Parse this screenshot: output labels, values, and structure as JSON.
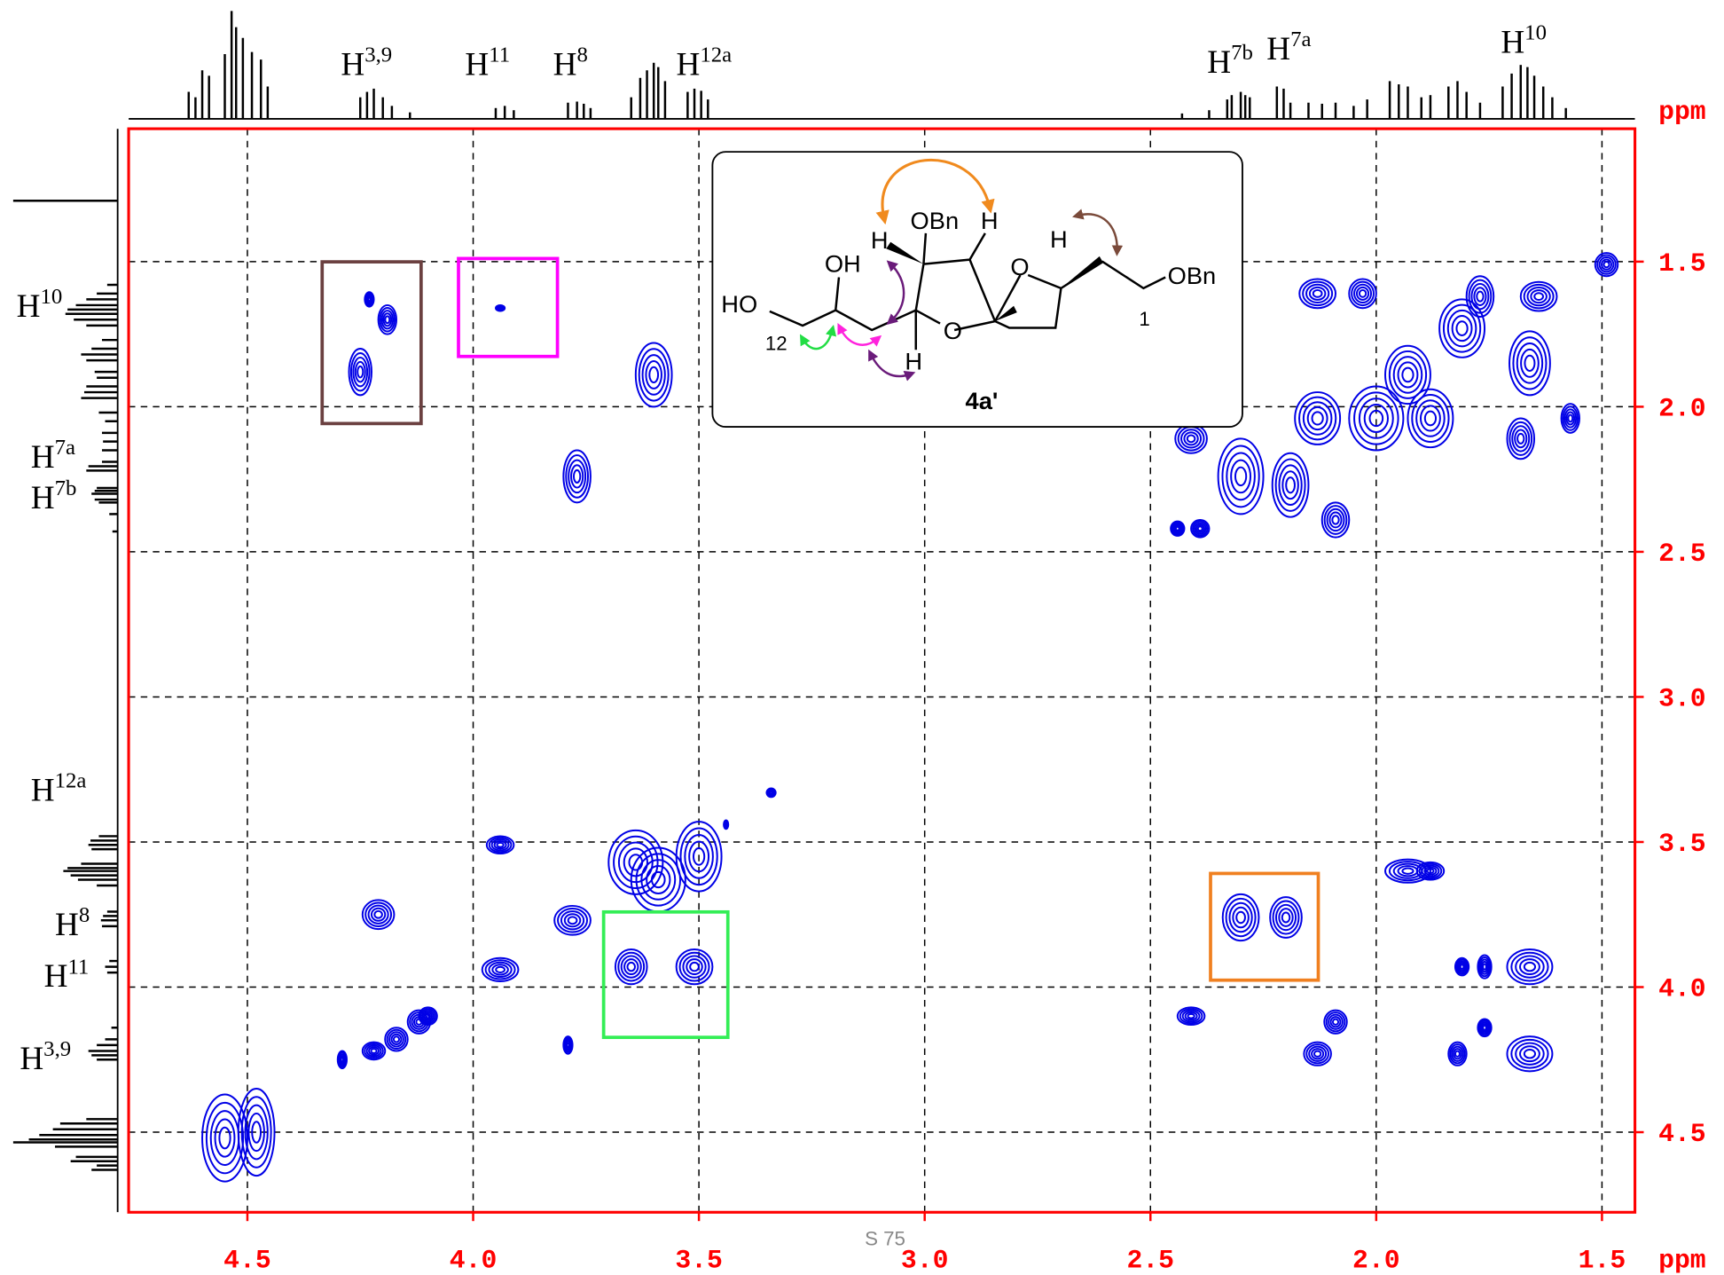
{
  "chart_data": {
    "type": "contour",
    "x_label": "ppm",
    "y_label": "ppm",
    "xlim": [
      4.763,
      1.427
    ],
    "ylim": [
      1.042,
      4.776
    ],
    "xticks": [
      4.5,
      {
        "value": 4,
        "label": "4.0"
      },
      3.5,
      {
        "value": 3,
        "label": "3.0"
      },
      2.5,
      {
        "value": 2,
        "label": "2.0"
      },
      1.5
    ],
    "yticks": [
      1.5,
      {
        "value": 2,
        "label": "2.0"
      },
      2.5,
      {
        "value": 3,
        "label": "3.0"
      },
      3.5,
      {
        "value": 4,
        "label": "4.0"
      },
      4.5
    ],
    "grid": true,
    "color": "#0000e6",
    "peaks": {
      "x": [
        4.23,
        4.19,
        4.25,
        3.94,
        3.6,
        3.77,
        2.41,
        2.3,
        2.19,
        2.09,
        2.44,
        2.39,
        2.13,
        2.03,
        1.81,
        1.66,
        1.93,
        2.0,
        2.13,
        1.88,
        1.68,
        1.57,
        1.64,
        1.49,
        1.77,
        3.64,
        3.5,
        3.59,
        3.94,
        4.21,
        3.78,
        3.65,
        3.51,
        3.94,
        3.79,
        3.34,
        3.44,
        4.29,
        4.22,
        4.17,
        4.12,
        4.1,
        4.55,
        4.48,
        2.3,
        2.2,
        1.93,
        1.88,
        1.66,
        1.76,
        1.81,
        2.41,
        2.13,
        2.09,
        1.82,
        1.66,
        1.76
      ],
      "y": [
        1.63,
        1.7,
        1.88,
        1.66,
        1.89,
        2.24,
        2.11,
        2.24,
        2.27,
        2.39,
        2.42,
        2.42,
        1.61,
        1.61,
        1.73,
        1.85,
        1.89,
        2.04,
        2.04,
        2.04,
        2.11,
        2.04,
        1.62,
        1.51,
        1.62,
        3.57,
        3.55,
        3.63,
        3.51,
        3.75,
        3.77,
        3.93,
        3.93,
        3.94,
        4.2,
        3.33,
        3.44,
        4.25,
        4.22,
        4.18,
        4.12,
        4.1,
        4.52,
        4.5,
        3.76,
        3.76,
        3.6,
        3.6,
        3.93,
        3.93,
        3.93,
        4.1,
        4.23,
        4.12,
        4.23,
        4.23,
        4.14
      ],
      "width": [
        0.02,
        0.04,
        0.05,
        0.02,
        0.08,
        0.06,
        0.07,
        0.1,
        0.08,
        0.06,
        0.03,
        0.04,
        0.08,
        0.06,
        0.1,
        0.09,
        0.1,
        0.12,
        0.1,
        0.1,
        0.06,
        0.04,
        0.08,
        0.05,
        0.06,
        0.12,
        0.1,
        0.12,
        0.06,
        0.07,
        0.08,
        0.07,
        0.08,
        0.08,
        0.02,
        0.02,
        0.01,
        0.02,
        0.05,
        0.05,
        0.05,
        0.04,
        0.1,
        0.08,
        0.08,
        0.07,
        0.1,
        0.06,
        0.1,
        0.03,
        0.03,
        0.06,
        0.06,
        0.05,
        0.04,
        0.1,
        0.03
      ],
      "height": [
        0.05,
        0.1,
        0.16,
        0.02,
        0.22,
        0.18,
        0.1,
        0.26,
        0.22,
        0.12,
        0.05,
        0.06,
        0.1,
        0.1,
        0.2,
        0.22,
        0.2,
        0.22,
        0.18,
        0.2,
        0.14,
        0.1,
        0.1,
        0.08,
        0.14,
        0.22,
        0.24,
        0.22,
        0.06,
        0.1,
        0.1,
        0.12,
        0.12,
        0.08,
        0.06,
        0.03,
        0.03,
        0.06,
        0.06,
        0.08,
        0.08,
        0.06,
        0.3,
        0.3,
        0.16,
        0.14,
        0.08,
        0.06,
        0.12,
        0.08,
        0.06,
        0.06,
        0.08,
        0.08,
        0.08,
        0.12,
        0.06
      ]
    },
    "projection": {
      "shift": [
        4.63,
        4.615,
        4.6,
        4.585,
        4.55,
        4.535,
        4.525,
        4.51,
        4.49,
        4.47,
        4.455,
        4.25,
        4.235,
        4.22,
        4.2,
        4.18,
        4.14,
        3.95,
        3.93,
        3.91,
        3.79,
        3.77,
        3.755,
        3.74,
        3.65,
        3.63,
        3.615,
        3.6,
        3.59,
        3.575,
        3.525,
        3.51,
        3.495,
        3.48,
        2.43,
        2.37,
        2.33,
        2.32,
        2.3,
        2.29,
        2.28,
        2.22,
        2.205,
        2.19,
        2.15,
        2.12,
        2.09,
        2.05,
        2.02,
        1.97,
        1.95,
        1.93,
        1.9,
        1.88,
        1.84,
        1.82,
        1.8,
        1.77,
        1.72,
        1.7,
        1.68,
        1.665,
        1.65,
        1.63,
        1.61,
        1.58,
        1.29
      ],
      "intensity": [
        0.25,
        0.2,
        0.45,
        0.4,
        0.6,
        1.0,
        0.85,
        0.75,
        0.62,
        0.55,
        0.3,
        0.2,
        0.25,
        0.28,
        0.2,
        0.12,
        0.06,
        0.1,
        0.12,
        0.08,
        0.15,
        0.16,
        0.14,
        0.1,
        0.2,
        0.38,
        0.45,
        0.52,
        0.48,
        0.35,
        0.25,
        0.28,
        0.26,
        0.18,
        0.05,
        0.08,
        0.18,
        0.22,
        0.25,
        0.22,
        0.2,
        0.3,
        0.28,
        0.15,
        0.15,
        0.14,
        0.15,
        0.12,
        0.18,
        0.35,
        0.32,
        0.3,
        0.2,
        0.22,
        0.3,
        0.35,
        0.25,
        0.15,
        0.3,
        0.42,
        0.5,
        0.48,
        0.4,
        0.3,
        0.2,
        0.1,
        1.0
      ]
    },
    "top_labels": [
      {
        "base": "H",
        "sup": "3,9"
      },
      {
        "base": "H",
        "sup": "11"
      },
      {
        "base": "H",
        "sup": "8"
      },
      {
        "base": "H",
        "sup": "12a"
      },
      {
        "base": "H",
        "sup": "7b"
      },
      {
        "base": "H",
        "sup": "7a"
      },
      {
        "base": "H",
        "sup": "10"
      }
    ],
    "left_labels": [
      {
        "base": "H",
        "sup": "10"
      },
      {
        "base": "H",
        "sup": "7a"
      },
      {
        "base": "H",
        "sup": "7b"
      },
      {
        "base": "H",
        "sup": "12a"
      },
      {
        "base": "H",
        "sup": "8"
      },
      {
        "base": "H",
        "sup": "11"
      },
      {
        "base": "H",
        "sup": "3,9"
      }
    ]
  },
  "structure": {
    "labels": [
      "OBn",
      "H",
      "H",
      "OH",
      "H",
      "OBn",
      "O",
      "HO",
      "O",
      "12",
      "1",
      "H"
    ],
    "compound": "4a'"
  },
  "footer": "S 75"
}
